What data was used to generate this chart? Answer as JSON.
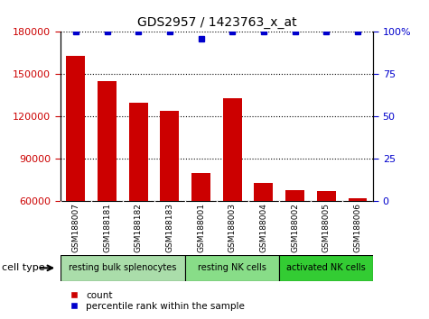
{
  "title": "GDS2957 / 1423763_x_at",
  "samples": [
    "GSM188007",
    "GSM188181",
    "GSM188182",
    "GSM188183",
    "GSM188001",
    "GSM188003",
    "GSM188004",
    "GSM188002",
    "GSM188005",
    "GSM188006"
  ],
  "counts": [
    163000,
    145000,
    130000,
    124000,
    80000,
    133000,
    73000,
    68000,
    67000,
    62000
  ],
  "percentile_ranks": [
    100,
    100,
    100,
    100,
    96,
    100,
    100,
    100,
    100,
    100
  ],
  "ylim_left": [
    60000,
    180000
  ],
  "ylim_right": [
    0,
    100
  ],
  "yticks_left": [
    60000,
    90000,
    120000,
    150000,
    180000
  ],
  "yticks_right": [
    0,
    25,
    50,
    75,
    100
  ],
  "bar_color": "#cc0000",
  "dot_color": "#0000cc",
  "cell_groups": [
    {
      "label": "resting bulk splenocytes",
      "start": 0,
      "end": 3,
      "color": "#aaddaa"
    },
    {
      "label": "resting NK cells",
      "start": 4,
      "end": 6,
      "color": "#88dd88"
    },
    {
      "label": "activated NK cells",
      "start": 7,
      "end": 9,
      "color": "#33cc33"
    }
  ],
  "cell_type_label": "cell type",
  "legend_count_label": "count",
  "legend_percentile_label": "percentile rank within the sample",
  "tick_label_color_left": "#cc0000",
  "tick_label_color_right": "#0000cc",
  "grid_color": "#000000",
  "bar_width": 0.6,
  "background_color": "#ffffff",
  "sample_bg_color": "#cccccc"
}
